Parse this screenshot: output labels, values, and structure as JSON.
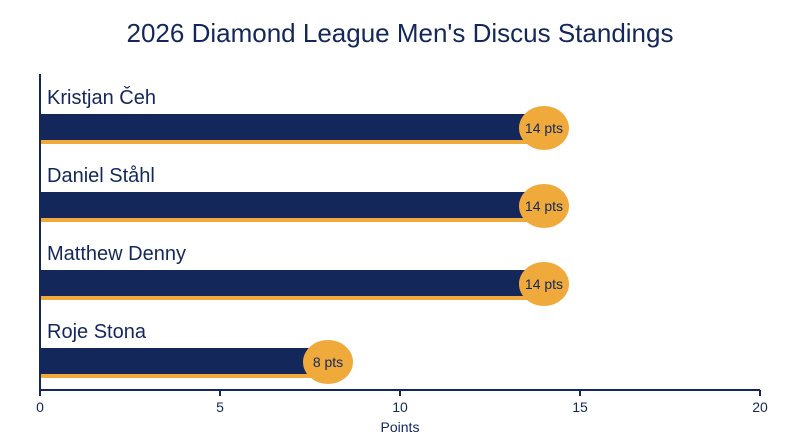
{
  "chart_data": {
    "type": "bar",
    "orientation": "horizontal",
    "title": "2026 Diamond League Men's Discus Standings",
    "xlabel": "Points",
    "ylabel": "",
    "xlim": [
      0,
      20
    ],
    "xticks": [
      0,
      5,
      10,
      15,
      20
    ],
    "categories": [
      "Kristjan Čeh",
      "Daniel Ståhl",
      "Matthew Denny",
      "Roje Stona"
    ],
    "values": [
      14,
      14,
      14,
      8
    ],
    "data_labels": [
      "14 pts",
      "14 pts",
      "14 pts",
      "8 pts"
    ],
    "grid": false,
    "legend": "none",
    "colors": {
      "bar": "#13275a",
      "accent": "#f0aa3c",
      "text": "#13275a",
      "axis": "#13275a"
    }
  }
}
